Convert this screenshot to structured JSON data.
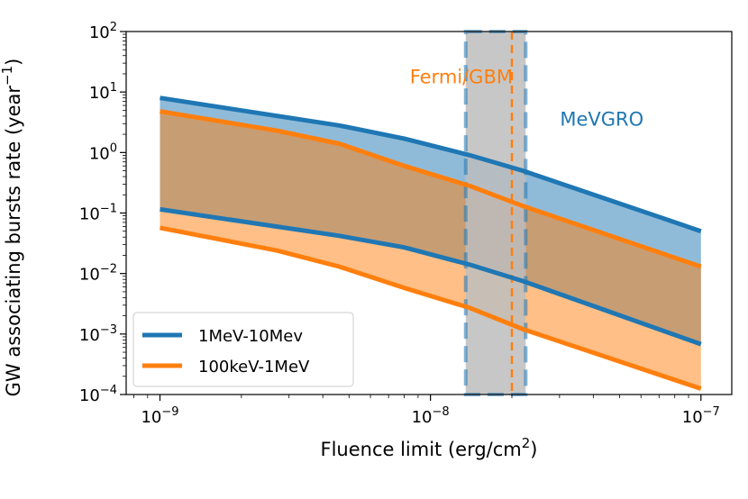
{
  "chart_data": {
    "type": "area",
    "xscale": "log",
    "yscale": "log",
    "xlim": [
      7.5e-10,
      1.3e-07
    ],
    "ylim": [
      0.0001,
      100
    ],
    "xlabel": "Fluence limit (erg/cm",
    "xlabel_sup": "2",
    "xlabel_close": ")",
    "ylabel": "GW associating bursts rate (year",
    "ylabel_sup": "−1",
    "ylabel_close": ")",
    "xticks": [
      {
        "value": 1e-09,
        "base": "10",
        "exp": "−9"
      },
      {
        "value": 1e-08,
        "base": "10",
        "exp": "−8"
      },
      {
        "value": 1e-07,
        "base": "10",
        "exp": "−7"
      }
    ],
    "yticks": [
      {
        "value": 100,
        "base": "10",
        "exp": "2"
      },
      {
        "value": 10,
        "base": "10",
        "exp": "1"
      },
      {
        "value": 1,
        "base": "10",
        "exp": "0"
      },
      {
        "value": 0.1,
        "base": "10",
        "exp": "−1"
      },
      {
        "value": 0.01,
        "base": "10",
        "exp": "−2"
      },
      {
        "value": 0.001,
        "base": "10",
        "exp": "−3"
      },
      {
        "value": 0.0001,
        "base": "10",
        "exp": "−4"
      }
    ],
    "series": [
      {
        "name": "1MeV-10Mev",
        "color": "#1f77b4",
        "fill": "#1f77b4",
        "fill_opacity": 0.5,
        "x": [
          1e-09,
          4.6e-09,
          8e-09,
          1.4e-08,
          2.2e-08,
          1e-07
        ],
        "upper": [
          8.0,
          2.8,
          1.7,
          0.9,
          0.5,
          0.05
        ],
        "lower": [
          0.115,
          0.042,
          0.027,
          0.014,
          0.0075,
          0.00068
        ]
      },
      {
        "name": "100keV-1MeV",
        "color": "#ff7f0e",
        "fill": "#ff7f0e",
        "fill_opacity": 0.5,
        "x": [
          1e-09,
          2.7e-09,
          4.6e-09,
          8e-09,
          1.4e-08,
          2.2e-08,
          1e-07
        ],
        "upper": [
          4.8,
          2.3,
          1.4,
          0.6,
          0.28,
          0.13,
          0.013
        ],
        "lower": [
          0.057,
          0.024,
          0.013,
          0.0058,
          0.0027,
          0.0012,
          0.000125
        ]
      }
    ],
    "band": {
      "x0": 1.35e-08,
      "x1": 2.25e-08,
      "fill": "#bdbdbd",
      "edge": "#1f77b4"
    },
    "vline": {
      "x": 2e-08,
      "color": "#ff7f0e"
    },
    "annotations": [
      {
        "text": "Fermi/GBM",
        "x": 1.3e-08,
        "y": 14,
        "color": "#ff7f0e",
        "anchor": "middle"
      },
      {
        "text": "MeVGRO",
        "x": 4.3e-08,
        "y": 2.8,
        "color": "#1f77b4",
        "anchor": "middle"
      }
    ],
    "legend": {
      "position": "lower-left",
      "entries": [
        {
          "label": "1MeV-10Mev",
          "color": "#1f77b4"
        },
        {
          "label": "100keV-1MeV",
          "color": "#ff7f0e"
        }
      ]
    },
    "grid": false
  }
}
